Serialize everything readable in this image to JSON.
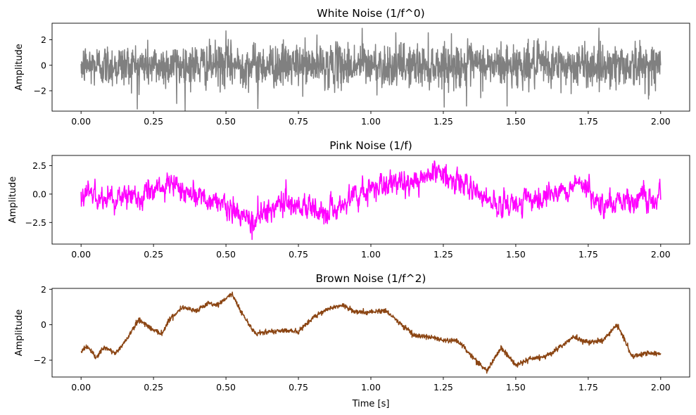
{
  "chart_data": [
    {
      "type": "line",
      "title": "White Noise (1/f^0)",
      "xlabel": "",
      "ylabel": "Amplitude",
      "xlim": [
        -0.1,
        2.1
      ],
      "ylim": [
        -3.6,
        3.3
      ],
      "xticks": [
        0.0,
        0.25,
        0.5,
        0.75,
        1.0,
        1.25,
        1.5,
        1.75,
        2.0
      ],
      "xtick_labels": [
        "0.00",
        "0.25",
        "0.50",
        "0.75",
        "1.00",
        "1.25",
        "1.50",
        "1.75",
        "2.00"
      ],
      "yticks": [
        -2,
        0,
        2
      ],
      "ytick_labels": [
        "−2",
        "0",
        "2"
      ],
      "series": [
        {
          "color": "#808080",
          "x_range": [
            0,
            2
          ],
          "kind": "white",
          "sample_points": [
            [
              0.0,
              0.1
            ],
            [
              0.2,
              -2.3
            ],
            [
              0.33,
              -3.0
            ],
            [
              0.5,
              2.7
            ],
            [
              0.61,
              -3.4
            ],
            [
              0.97,
              2.9
            ],
            [
              1.33,
              -3.2
            ],
            [
              1.47,
              -3.2
            ],
            [
              2.0,
              0.0
            ]
          ]
        }
      ]
    },
    {
      "type": "line",
      "title": "Pink Noise (1/f)",
      "xlabel": "",
      "ylabel": "Amplitude",
      "xlim": [
        -0.1,
        2.1
      ],
      "ylim": [
        -4.4,
        3.4
      ],
      "xticks": [
        0.0,
        0.25,
        0.5,
        0.75,
        1.0,
        1.25,
        1.5,
        1.75,
        2.0
      ],
      "xtick_labels": [
        "0.00",
        "0.25",
        "0.50",
        "0.75",
        "1.00",
        "1.25",
        "1.50",
        "1.75",
        "2.00"
      ],
      "yticks": [
        -2.5,
        0.0,
        2.5
      ],
      "ytick_labels": [
        "−2.5",
        "0.0",
        "2.5"
      ],
      "series": [
        {
          "color": "#ff00ff",
          "x_range": [
            0,
            2
          ],
          "kind": "pink",
          "sample_points": [
            [
              0.0,
              0.2
            ],
            [
              0.1,
              -0.5
            ],
            [
              0.2,
              -0.3
            ],
            [
              0.32,
              1.2
            ],
            [
              0.45,
              -0.8
            ],
            [
              0.59,
              -4.0
            ],
            [
              0.7,
              -1.0
            ],
            [
              0.85,
              -2.6
            ],
            [
              1.0,
              0.8
            ],
            [
              1.1,
              1.5
            ],
            [
              1.22,
              2.9
            ],
            [
              1.26,
              2.6
            ],
            [
              1.4,
              -0.8
            ],
            [
              1.5,
              -1.5
            ],
            [
              1.72,
              1.5
            ],
            [
              1.8,
              -1.0
            ],
            [
              2.0,
              -0.5
            ]
          ]
        }
      ]
    },
    {
      "type": "line",
      "title": "Brown Noise (1/f^2)",
      "xlabel": "Time [s]",
      "ylabel": "Amplitude",
      "xlim": [
        -0.1,
        2.1
      ],
      "ylim": [
        -2.95,
        2.05
      ],
      "xticks": [
        0.0,
        0.25,
        0.5,
        0.75,
        1.0,
        1.25,
        1.5,
        1.75,
        2.0
      ],
      "xtick_labels": [
        "0.00",
        "0.25",
        "0.50",
        "0.75",
        "1.00",
        "1.25",
        "1.50",
        "1.75",
        "2.00"
      ],
      "yticks": [
        -2,
        0,
        2
      ],
      "ytick_labels": [
        "−2",
        "0",
        "2"
      ],
      "series": [
        {
          "color": "#8b4513",
          "x_range": [
            0,
            2
          ],
          "kind": "brown",
          "points": [
            [
              0.0,
              -1.5
            ],
            [
              0.02,
              -1.2
            ],
            [
              0.05,
              -1.85
            ],
            [
              0.08,
              -1.3
            ],
            [
              0.12,
              -1.6
            ],
            [
              0.15,
              -1.0
            ],
            [
              0.2,
              0.3
            ],
            [
              0.25,
              -0.3
            ],
            [
              0.28,
              -0.5
            ],
            [
              0.3,
              0.2
            ],
            [
              0.35,
              1.0
            ],
            [
              0.4,
              0.8
            ],
            [
              0.44,
              1.2
            ],
            [
              0.47,
              1.1
            ],
            [
              0.5,
              1.5
            ],
            [
              0.52,
              1.75
            ],
            [
              0.55,
              0.8
            ],
            [
              0.6,
              -0.5
            ],
            [
              0.65,
              -0.4
            ],
            [
              0.7,
              -0.3
            ],
            [
              0.75,
              -0.4
            ],
            [
              0.8,
              0.4
            ],
            [
              0.85,
              0.9
            ],
            [
              0.9,
              1.1
            ],
            [
              0.95,
              0.7
            ],
            [
              1.0,
              0.7
            ],
            [
              1.05,
              0.8
            ],
            [
              1.1,
              0.1
            ],
            [
              1.15,
              -0.6
            ],
            [
              1.2,
              -0.7
            ],
            [
              1.25,
              -0.9
            ],
            [
              1.3,
              -0.9
            ],
            [
              1.35,
              -1.8
            ],
            [
              1.4,
              -2.6
            ],
            [
              1.45,
              -1.3
            ],
            [
              1.5,
              -2.3
            ],
            [
              1.55,
              -1.9
            ],
            [
              1.6,
              -1.8
            ],
            [
              1.65,
              -1.3
            ],
            [
              1.7,
              -0.7
            ],
            [
              1.75,
              -1.0
            ],
            [
              1.8,
              -0.9
            ],
            [
              1.85,
              0.0
            ],
            [
              1.88,
              -1.0
            ],
            [
              1.9,
              -1.8
            ],
            [
              1.95,
              -1.6
            ],
            [
              2.0,
              -1.6
            ]
          ]
        }
      ]
    }
  ]
}
